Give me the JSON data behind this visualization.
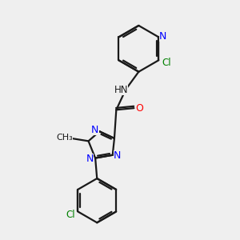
{
  "background_color": "#efefef",
  "bond_color": "#1a1a1a",
  "nitrogen_color": "#0000ff",
  "oxygen_color": "#ff0000",
  "chlorine_color": "#008000",
  "figsize": [
    3.0,
    3.0
  ],
  "dpi": 100,
  "xlim": [
    0.5,
    5.5
  ],
  "ylim": [
    0.3,
    7.3
  ]
}
